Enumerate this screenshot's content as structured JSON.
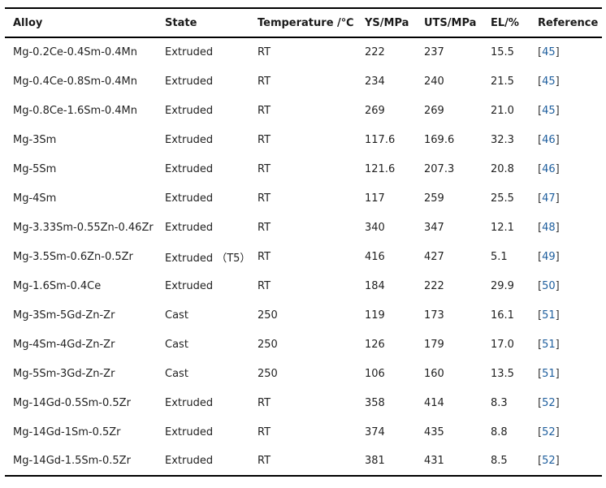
{
  "table": {
    "headers": [
      "Alloy",
      "State",
      "Temperature /℃",
      "YS/MPa",
      "UTS/MPa",
      "EL/%",
      "Reference"
    ],
    "rows": [
      {
        "alloy": "Mg-0.2Ce-0.4Sm-0.4Mn",
        "state": "Extruded",
        "temperature": "RT",
        "ys": "222",
        "uts": "237",
        "el": "15.5",
        "ref": "45"
      },
      {
        "alloy": "Mg-0.4Ce-0.8Sm-0.4Mn",
        "state": "Extruded",
        "temperature": "RT",
        "ys": "234",
        "uts": "240",
        "el": "21.5",
        "ref": "45"
      },
      {
        "alloy": "Mg-0.8Ce-1.6Sm-0.4Mn",
        "state": "Extruded",
        "temperature": "RT",
        "ys": "269",
        "uts": "269",
        "el": "21.0",
        "ref": "45"
      },
      {
        "alloy": "Mg-3Sm",
        "state": "Extruded",
        "temperature": "RT",
        "ys": "117.6",
        "uts": "169.6",
        "el": "32.3",
        "ref": "46"
      },
      {
        "alloy": "Mg-5Sm",
        "state": "Extruded",
        "temperature": "RT",
        "ys": "121.6",
        "uts": "207.3",
        "el": "20.8",
        "ref": "46"
      },
      {
        "alloy": "Mg-4Sm",
        "state": "Extruded",
        "temperature": "RT",
        "ys": "117",
        "uts": "259",
        "el": "25.5",
        "ref": "47"
      },
      {
        "alloy": "Mg-3.33Sm-0.55Zn-0.46Zr",
        "state": "Extruded",
        "temperature": "RT",
        "ys": "340",
        "uts": "347",
        "el": "12.1",
        "ref": "48"
      },
      {
        "alloy": "Mg-3.5Sm-0.6Zn-0.5Zr",
        "state": "Extruded （T5）",
        "temperature": "RT",
        "ys": "416",
        "uts": "427",
        "el": "5.1",
        "ref": "49"
      },
      {
        "alloy": "Mg-1.6Sm-0.4Ce",
        "state": "Extruded",
        "temperature": "RT",
        "ys": "184",
        "uts": "222",
        "el": "29.9",
        "ref": "50"
      },
      {
        "alloy": "Mg-3Sm-5Gd-Zn-Zr",
        "state": "Cast",
        "temperature": "250",
        "ys": "119",
        "uts": "173",
        "el": "16.1",
        "ref": "51"
      },
      {
        "alloy": "Mg-4Sm-4Gd-Zn-Zr",
        "state": "Cast",
        "temperature": "250",
        "ys": "126",
        "uts": "179",
        "el": "17.0",
        "ref": "51"
      },
      {
        "alloy": "Mg-5Sm-3Gd-Zn-Zr",
        "state": "Cast",
        "temperature": "250",
        "ys": "106",
        "uts": "160",
        "el": "13.5",
        "ref": "51"
      },
      {
        "alloy": "Mg-14Gd-0.5Sm-0.5Zr",
        "state": "Extruded",
        "temperature": "RT",
        "ys": "358",
        "uts": "414",
        "el": "8.3",
        "ref": "52"
      },
      {
        "alloy": "Mg-14Gd-1Sm-0.5Zr",
        "state": "Extruded",
        "temperature": "RT",
        "ys": "374",
        "uts": "435",
        "el": "8.8",
        "ref": "52"
      },
      {
        "alloy": "Mg-14Gd-1.5Sm-0.5Zr",
        "state": "Extruded",
        "temperature": "RT",
        "ys": "381",
        "uts": "431",
        "el": "8.5",
        "ref": "52"
      }
    ]
  },
  "colors": {
    "link": "#1f5f9e",
    "rule": "#000000",
    "text": "#222222"
  }
}
